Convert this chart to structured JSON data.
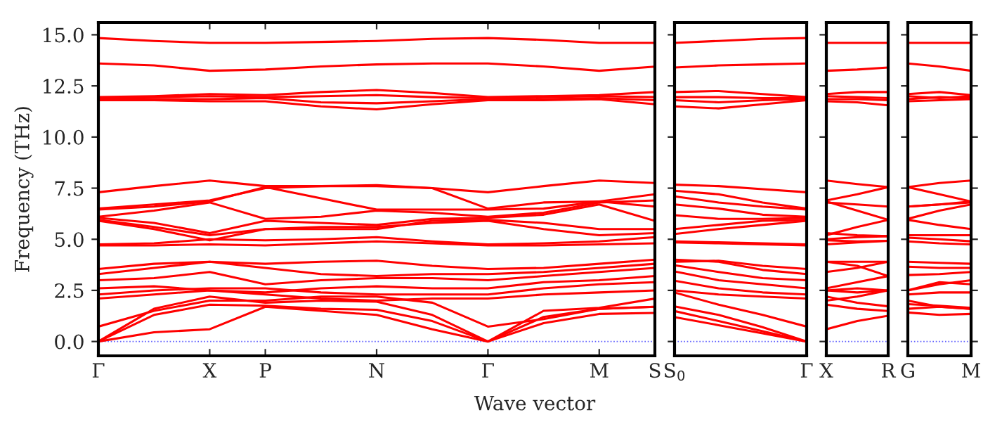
{
  "chart_data": [
    {
      "type": "line",
      "ylabel": "Frequency (THz)",
      "xlabel": "Wave vector",
      "categories": [
        "Γ",
        null,
        "X",
        "P",
        null,
        "N",
        null,
        "Γ",
        null,
        "M",
        "S"
      ],
      "ylim": [
        -0.7,
        15.6
      ],
      "yticks": [
        {
          "value": 0,
          "label": "0.0"
        },
        {
          "value": 2.5,
          "label": "2.5"
        },
        {
          "value": 5,
          "label": "5.0"
        },
        {
          "value": 7.5,
          "label": "7.5"
        },
        {
          "value": 10,
          "label": "10.0"
        },
        {
          "value": 12.5,
          "label": "12.5"
        },
        {
          "value": 15,
          "label": "15.0"
        }
      ],
      "ref_lines": [
        {
          "axis": "y",
          "value": 0,
          "color": "#6060ff",
          "line_style": "dotted"
        }
      ],
      "grid": false,
      "legend": false,
      "line_style": "solid",
      "marker": "none",
      "series": [
        {
          "color": "#ff0000",
          "values": [
            0,
            0.45,
            0.6,
            1.7,
            1.5,
            1.3,
            0.6,
            0,
            0.9,
            1.35,
            1.4
          ]
        },
        {
          "color": "#ff0000",
          "values": [
            0,
            1.3,
            1.8,
            1.75,
            1.6,
            1.55,
            1.0,
            0,
            1.2,
            1.6,
            1.7
          ]
        },
        {
          "color": "#ff0000",
          "values": [
            0,
            1.6,
            2.2,
            1.9,
            2.0,
            1.95,
            1.3,
            0,
            1.5,
            1.65,
            2.1
          ]
        },
        {
          "color": "#ff0000",
          "values": [
            0.73,
            1.5,
            2.0,
            2.0,
            2.2,
            2.2,
            1.9,
            0.73,
            1.1,
            1.6,
            1.7
          ]
        },
        {
          "color": "#ff0000",
          "values": [
            2.1,
            2.3,
            2.5,
            2.3,
            2.1,
            2.0,
            2.1,
            2.1,
            2.3,
            2.4,
            2.5
          ]
        },
        {
          "color": "#ff0000",
          "values": [
            2.3,
            2.5,
            2.6,
            2.6,
            2.4,
            2.3,
            2.3,
            2.3,
            2.6,
            2.8,
            2.9
          ]
        },
        {
          "color": "#ff0000",
          "values": [
            2.6,
            2.7,
            2.5,
            2.4,
            2.6,
            2.7,
            2.6,
            2.6,
            2.9,
            3.0,
            3.2
          ]
        },
        {
          "color": "#ff0000",
          "values": [
            3.0,
            3.1,
            3.4,
            2.8,
            3.0,
            3.1,
            3.1,
            3.0,
            3.2,
            3.4,
            3.6
          ]
        },
        {
          "color": "#ff0000",
          "values": [
            3.3,
            3.6,
            3.9,
            3.6,
            3.3,
            3.2,
            3.3,
            3.3,
            3.4,
            3.6,
            3.8
          ]
        },
        {
          "color": "#ff0000",
          "values": [
            3.55,
            3.8,
            3.9,
            3.8,
            3.9,
            3.95,
            3.7,
            3.55,
            3.6,
            3.8,
            4.0
          ]
        },
        {
          "color": "#ff0000",
          "values": [
            4.7,
            4.7,
            4.75,
            4.7,
            4.8,
            4.9,
            4.8,
            4.7,
            4.7,
            4.75,
            4.8
          ]
        },
        {
          "color": "#ff0000",
          "values": [
            4.75,
            4.8,
            5.0,
            4.95,
            5.0,
            5.1,
            4.9,
            4.75,
            4.8,
            4.9,
            5.1
          ]
        },
        {
          "color": "#ff0000",
          "values": [
            5.9,
            5.5,
            4.95,
            5.5,
            5.6,
            5.6,
            5.8,
            5.9,
            5.5,
            5.2,
            5.3
          ]
        },
        {
          "color": "#ff0000",
          "values": [
            5.95,
            5.6,
            5.2,
            5.5,
            5.5,
            5.5,
            5.9,
            5.95,
            5.8,
            5.5,
            5.5
          ]
        },
        {
          "color": "#ff0000",
          "values": [
            6.05,
            5.8,
            5.3,
            5.9,
            5.8,
            5.7,
            6.0,
            6.05,
            6.2,
            6.7,
            5.9
          ]
        },
        {
          "color": "#ff0000",
          "values": [
            6.1,
            6.4,
            6.8,
            6.0,
            6.1,
            6.4,
            6.3,
            6.1,
            6.3,
            6.8,
            6.9
          ]
        },
        {
          "color": "#ff0000",
          "values": [
            6.45,
            6.6,
            6.85,
            7.55,
            7.0,
            6.45,
            6.45,
            6.45,
            6.5,
            6.85,
            7.2
          ]
        },
        {
          "color": "#ff0000",
          "values": [
            6.5,
            6.7,
            6.9,
            7.5,
            7.6,
            7.6,
            7.5,
            6.5,
            6.8,
            6.85,
            6.6
          ]
        },
        {
          "color": "#ff0000",
          "values": [
            7.3,
            7.6,
            7.87,
            7.6,
            7.6,
            7.65,
            7.5,
            7.3,
            7.6,
            7.87,
            7.75
          ]
        },
        {
          "color": "#ff0000",
          "values": [
            11.8,
            11.8,
            11.75,
            11.75,
            11.5,
            11.35,
            11.6,
            11.8,
            11.8,
            11.85,
            11.6
          ]
        },
        {
          "color": "#ff0000",
          "values": [
            11.85,
            11.85,
            11.85,
            11.9,
            11.7,
            11.65,
            11.75,
            11.85,
            11.85,
            11.9,
            11.8
          ]
        },
        {
          "color": "#ff0000",
          "values": [
            11.9,
            11.95,
            12.0,
            11.95,
            12.0,
            12.05,
            11.95,
            11.9,
            11.95,
            12.0,
            11.95
          ]
        },
        {
          "color": "#ff0000",
          "values": [
            11.95,
            12.0,
            12.1,
            12.05,
            12.2,
            12.3,
            12.15,
            11.95,
            12.0,
            12.05,
            12.2
          ]
        },
        {
          "color": "#ff0000",
          "values": [
            13.6,
            13.5,
            13.24,
            13.3,
            13.45,
            13.55,
            13.6,
            13.6,
            13.45,
            13.24,
            13.44
          ]
        },
        {
          "color": "#ff0000",
          "values": [
            14.84,
            14.7,
            14.6,
            14.6,
            14.65,
            14.7,
            14.8,
            14.84,
            14.75,
            14.6,
            14.6
          ]
        }
      ]
    },
    {
      "type": "line",
      "categories": [
        "S$_{0}$",
        null,
        null,
        "Γ"
      ],
      "ylim": [
        -0.7,
        15.6
      ],
      "yticks": [
        0,
        2.5,
        5,
        7.5,
        10,
        12.5,
        15
      ],
      "tick_labels": "x",
      "ref_lines": [
        {
          "axis": "y",
          "value": 0,
          "color": "#6060ff",
          "line_style": "dotted"
        }
      ],
      "grid": false,
      "legend": false,
      "line_style": "solid",
      "marker": "none",
      "series": [
        {
          "color": "#ff0000",
          "values": [
            1.19,
            0.8,
            0.4,
            0
          ]
        },
        {
          "color": "#ff0000",
          "values": [
            1.49,
            1.0,
            0.5,
            0
          ]
        },
        {
          "color": "#ff0000",
          "values": [
            1.72,
            1.3,
            0.7,
            0
          ]
        },
        {
          "color": "#ff0000",
          "values": [
            2.4,
            1.8,
            1.3,
            0.73
          ]
        },
        {
          "color": "#ff0000",
          "values": [
            2.5,
            2.3,
            2.2,
            2.1
          ]
        },
        {
          "color": "#ff0000",
          "values": [
            2.97,
            2.6,
            2.4,
            2.3
          ]
        },
        {
          "color": "#ff0000",
          "values": [
            3.43,
            3.0,
            2.8,
            2.6
          ]
        },
        {
          "color": "#ff0000",
          "values": [
            3.73,
            3.4,
            3.1,
            3.0
          ]
        },
        {
          "color": "#ff0000",
          "values": [
            4.0,
            3.9,
            3.5,
            3.3
          ]
        },
        {
          "color": "#ff0000",
          "values": [
            3.9,
            3.95,
            3.7,
            3.55
          ]
        },
        {
          "color": "#ff0000",
          "values": [
            4.85,
            4.8,
            4.75,
            4.7
          ]
        },
        {
          "color": "#ff0000",
          "values": [
            4.9,
            4.85,
            4.8,
            4.75
          ]
        },
        {
          "color": "#ff0000",
          "values": [
            5.26,
            5.5,
            5.7,
            5.9
          ]
        },
        {
          "color": "#ff0000",
          "values": [
            5.5,
            5.7,
            5.9,
            5.95
          ]
        },
        {
          "color": "#ff0000",
          "values": [
            6.18,
            6.0,
            6.0,
            6.05
          ]
        },
        {
          "color": "#ff0000",
          "values": [
            6.7,
            6.5,
            6.2,
            6.1
          ]
        },
        {
          "color": "#ff0000",
          "values": [
            7.1,
            6.8,
            6.6,
            6.45
          ]
        },
        {
          "color": "#ff0000",
          "values": [
            7.37,
            7.2,
            6.8,
            6.5
          ]
        },
        {
          "color": "#ff0000",
          "values": [
            7.67,
            7.6,
            7.45,
            7.3
          ]
        },
        {
          "color": "#ff0000",
          "values": [
            11.5,
            11.4,
            11.6,
            11.8
          ]
        },
        {
          "color": "#ff0000",
          "values": [
            11.8,
            11.7,
            11.8,
            11.85
          ]
        },
        {
          "color": "#ff0000",
          "values": [
            11.95,
            11.95,
            11.9,
            11.9
          ]
        },
        {
          "color": "#ff0000",
          "values": [
            12.2,
            12.25,
            12.1,
            11.95
          ]
        },
        {
          "color": "#ff0000",
          "values": [
            13.4,
            13.5,
            13.55,
            13.6
          ]
        },
        {
          "color": "#ff0000",
          "values": [
            14.6,
            14.7,
            14.8,
            14.84
          ]
        }
      ]
    },
    {
      "type": "line",
      "categories": [
        "X",
        null,
        "R"
      ],
      "ylim": [
        -0.7,
        15.6
      ],
      "yticks": [
        0,
        2.5,
        5,
        7.5,
        10,
        12.5,
        15
      ],
      "tick_labels": "x",
      "ref_lines": [
        {
          "axis": "y",
          "value": 0,
          "color": "#6060ff",
          "line_style": "dotted"
        }
      ],
      "grid": false,
      "legend": false,
      "line_style": "solid",
      "marker": "none",
      "series": [
        {
          "color": "#ff0000",
          "values": [
            0.6,
            1.0,
            1.26
          ]
        },
        {
          "color": "#ff0000",
          "values": [
            1.8,
            1.6,
            1.49
          ]
        },
        {
          "color": "#ff0000",
          "values": [
            2.2,
            1.9,
            1.72
          ]
        },
        {
          "color": "#ff0000",
          "values": [
            2.0,
            2.2,
            2.5
          ]
        },
        {
          "color": "#ff0000",
          "values": [
            2.5,
            2.4,
            2.5
          ]
        },
        {
          "color": "#ff0000",
          "values": [
            2.6,
            2.9,
            3.2
          ]
        },
        {
          "color": "#ff0000",
          "values": [
            2.5,
            2.6,
            2.5
          ]
        },
        {
          "color": "#ff0000",
          "values": [
            3.4,
            3.6,
            3.9
          ]
        },
        {
          "color": "#ff0000",
          "values": [
            3.9,
            3.7,
            3.2
          ]
        },
        {
          "color": "#ff0000",
          "values": [
            3.9,
            3.9,
            3.9
          ]
        },
        {
          "color": "#ff0000",
          "values": [
            4.75,
            4.85,
            4.92
          ]
        },
        {
          "color": "#ff0000",
          "values": [
            5.0,
            5.1,
            5.15
          ]
        },
        {
          "color": "#ff0000",
          "values": [
            4.95,
            4.9,
            4.92
          ]
        },
        {
          "color": "#ff0000",
          "values": [
            5.2,
            5.6,
            5.95
          ]
        },
        {
          "color": "#ff0000",
          "values": [
            5.3,
            5.2,
            5.15
          ]
        },
        {
          "color": "#ff0000",
          "values": [
            6.8,
            6.7,
            6.6
          ]
        },
        {
          "color": "#ff0000",
          "values": [
            6.85,
            6.4,
            5.95
          ]
        },
        {
          "color": "#ff0000",
          "values": [
            6.9,
            7.2,
            7.55
          ]
        },
        {
          "color": "#ff0000",
          "values": [
            7.87,
            7.7,
            7.55
          ]
        },
        {
          "color": "#ff0000",
          "values": [
            11.75,
            11.7,
            11.55
          ]
        },
        {
          "color": "#ff0000",
          "values": [
            11.85,
            11.85,
            11.8
          ]
        },
        {
          "color": "#ff0000",
          "values": [
            12.0,
            11.95,
            11.9
          ]
        },
        {
          "color": "#ff0000",
          "values": [
            12.1,
            12.2,
            12.2
          ]
        },
        {
          "color": "#ff0000",
          "values": [
            13.24,
            13.3,
            13.4
          ]
        },
        {
          "color": "#ff0000",
          "values": [
            14.6,
            14.6,
            14.6
          ]
        }
      ]
    },
    {
      "type": "line",
      "categories": [
        "G",
        null,
        "M"
      ],
      "ylim": [
        -0.7,
        15.6
      ],
      "yticks": [
        0,
        2.5,
        5,
        7.5,
        10,
        12.5,
        15
      ],
      "tick_labels": "x",
      "ref_lines": [
        {
          "axis": "y",
          "value": 0,
          "color": "#6060ff",
          "line_style": "dotted"
        }
      ],
      "grid": false,
      "legend": false,
      "line_style": "solid",
      "marker": "none",
      "series": [
        {
          "color": "#ff0000",
          "values": [
            1.42,
            1.3,
            1.35
          ]
        },
        {
          "color": "#ff0000",
          "values": [
            1.6,
            1.7,
            1.6
          ]
        },
        {
          "color": "#ff0000",
          "values": [
            1.83,
            1.75,
            1.65
          ]
        },
        {
          "color": "#ff0000",
          "values": [
            2.0,
            1.7,
            1.6
          ]
        },
        {
          "color": "#ff0000",
          "values": [
            2.3,
            2.4,
            2.4
          ]
        },
        {
          "color": "#ff0000",
          "values": [
            2.5,
            2.9,
            2.8
          ]
        },
        {
          "color": "#ff0000",
          "values": [
            2.5,
            2.8,
            3.0
          ]
        },
        {
          "color": "#ff0000",
          "values": [
            3.25,
            3.3,
            3.4
          ]
        },
        {
          "color": "#ff0000",
          "values": [
            3.66,
            3.6,
            3.6
          ]
        },
        {
          "color": "#ff0000",
          "values": [
            3.9,
            3.85,
            3.8
          ]
        },
        {
          "color": "#ff0000",
          "values": [
            4.9,
            4.8,
            4.75
          ]
        },
        {
          "color": "#ff0000",
          "values": [
            5.08,
            5.0,
            4.9
          ]
        },
        {
          "color": "#ff0000",
          "values": [
            5.2,
            5.2,
            5.2
          ]
        },
        {
          "color": "#ff0000",
          "values": [
            5.95,
            5.7,
            5.5
          ]
        },
        {
          "color": "#ff0000",
          "values": [
            6.0,
            6.4,
            6.7
          ]
        },
        {
          "color": "#ff0000",
          "values": [
            6.6,
            6.7,
            6.8
          ]
        },
        {
          "color": "#ff0000",
          "values": [
            7.55,
            7.2,
            6.85
          ]
        },
        {
          "color": "#ff0000",
          "values": [
            6.6,
            6.7,
            6.85
          ]
        },
        {
          "color": "#ff0000",
          "values": [
            7.55,
            7.75,
            7.87
          ]
        },
        {
          "color": "#ff0000",
          "values": [
            11.75,
            11.8,
            11.85
          ]
        },
        {
          "color": "#ff0000",
          "values": [
            11.85,
            11.95,
            11.9
          ]
        },
        {
          "color": "#ff0000",
          "values": [
            12.0,
            11.9,
            12.0
          ]
        },
        {
          "color": "#ff0000",
          "values": [
            12.1,
            12.2,
            12.05
          ]
        },
        {
          "color": "#ff0000",
          "values": [
            13.6,
            13.45,
            13.24
          ]
        },
        {
          "color": "#ff0000",
          "values": [
            14.6,
            14.6,
            14.6
          ]
        }
      ]
    }
  ]
}
